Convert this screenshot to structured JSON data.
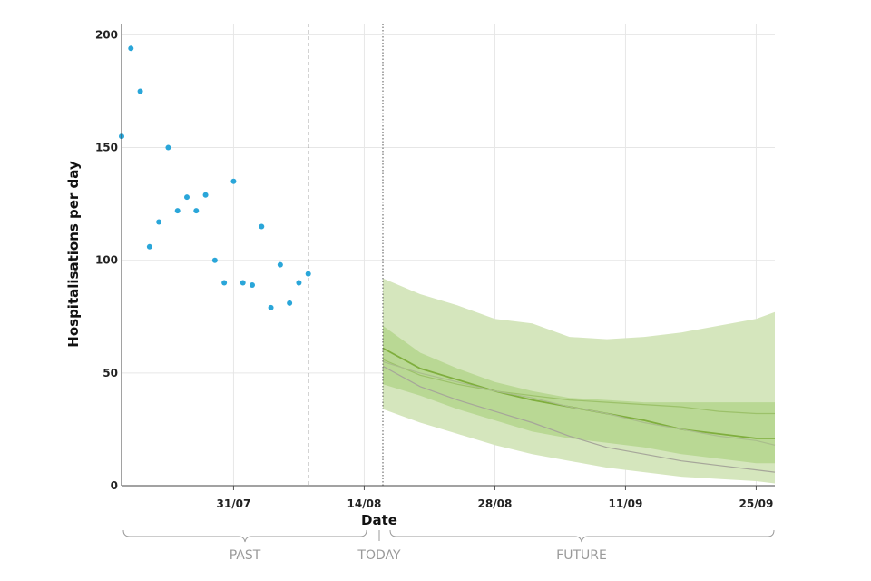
{
  "chart_data": {
    "type": "line",
    "xlabel": "Date",
    "ylabel": "Hospitalisations per day",
    "ylim": [
      0,
      205
    ],
    "xlim": [
      "2021-07-19",
      "2021-09-27"
    ],
    "yticks": [
      0,
      50,
      100,
      150,
      200
    ],
    "xticks": [
      {
        "date": "2021-07-31",
        "label": "31/07"
      },
      {
        "date": "2021-08-14",
        "label": "14/08"
      },
      {
        "date": "2021-08-28",
        "label": "28/08"
      },
      {
        "date": "2021-09-11",
        "label": "11/09"
      },
      {
        "date": "2021-09-25",
        "label": "25/09"
      }
    ],
    "grid": true,
    "data_cutoff_date": "2021-08-08",
    "today_date": "2021-08-16",
    "observed": {
      "color": "#2aa6d9",
      "dates": [
        "2021-07-19",
        "2021-07-20",
        "2021-07-21",
        "2021-07-22",
        "2021-07-23",
        "2021-07-24",
        "2021-07-25",
        "2021-07-26",
        "2021-07-27",
        "2021-07-28",
        "2021-07-29",
        "2021-07-30",
        "2021-07-31",
        "2021-08-01",
        "2021-08-02",
        "2021-08-03",
        "2021-08-04",
        "2021-08-05",
        "2021-08-06",
        "2021-08-07",
        "2021-08-08"
      ],
      "values": [
        155,
        194,
        175,
        106,
        117,
        150,
        122,
        128,
        122,
        129,
        100,
        90,
        135,
        90,
        89,
        115,
        79,
        98,
        81,
        90,
        94
      ]
    },
    "forecast": {
      "dates": [
        "2021-08-16",
        "2021-08-20",
        "2021-08-24",
        "2021-08-28",
        "2021-09-01",
        "2021-09-05",
        "2021-09-09",
        "2021-09-13",
        "2021-09-17",
        "2021-09-21",
        "2021-09-25",
        "2021-09-27"
      ],
      "outer_band": {
        "color": "#d5e6bd",
        "lower": [
          34,
          28,
          23,
          18,
          14,
          11,
          8,
          6,
          4,
          3,
          2,
          1
        ],
        "upper": [
          92,
          85,
          80,
          74,
          72,
          66,
          65,
          66,
          68,
          71,
          74,
          77
        ]
      },
      "inner_band": {
        "color": "#b9d894",
        "lower": [
          45,
          40,
          34,
          29,
          24,
          21,
          19,
          17,
          14,
          12,
          10,
          10
        ],
        "upper": [
          71,
          59,
          52,
          46,
          42,
          39,
          38,
          37,
          37,
          37,
          37,
          37
        ]
      },
      "series": [
        {
          "color": "#7fae3d",
          "values": [
            61,
            52,
            47,
            42,
            38,
            35,
            32,
            29,
            25,
            23,
            21,
            21
          ]
        },
        {
          "color": "#9cc16a",
          "values": [
            56,
            49,
            45,
            42,
            40,
            38,
            37,
            36,
            35,
            33,
            32,
            32
          ]
        },
        {
          "color": "#a9bd8c",
          "values": [
            55,
            50,
            46,
            42,
            39,
            35,
            32,
            28,
            25,
            22,
            20,
            18
          ]
        },
        {
          "color": "#a6a69a",
          "values": [
            53,
            44,
            38,
            33,
            28,
            22,
            17,
            14,
            11,
            9,
            7,
            6
          ]
        }
      ]
    }
  },
  "periods": {
    "past_label": "PAST",
    "today_label": "TODAY",
    "future_label": "FUTURE"
  }
}
